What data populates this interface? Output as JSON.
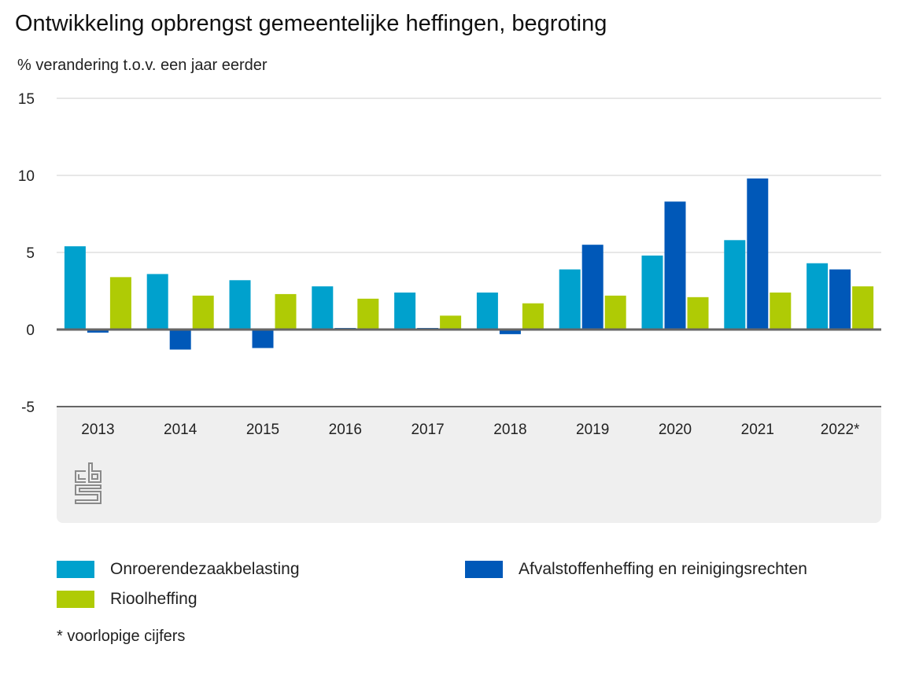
{
  "header": {
    "title": "Ontwikkeling opbrengst gemeentelijke heffingen, begroting",
    "subtitle": "% verandering t.o.v. een jaar eerder"
  },
  "logo": {
    "name": "cbs-logo",
    "text": "cbs"
  },
  "footnote": "* voorlopige cijfers",
  "chart_data": {
    "type": "bar",
    "title": "Ontwikkeling opbrengst gemeentelijke heffingen, begroting",
    "subtitle": "% verandering t.o.v. een jaar eerder",
    "xlabel": "",
    "ylabel": "% verandering t.o.v. een jaar eerder",
    "ylim": [
      -5,
      15
    ],
    "yticks": [
      -5,
      0,
      5,
      10,
      15
    ],
    "ytick_labels": [
      "-5",
      "0",
      "5",
      "10",
      "15"
    ],
    "grid": true,
    "legend_position": "bottom",
    "categories": [
      "2013",
      "2014",
      "2015",
      "2016",
      "2017",
      "2018",
      "2019",
      "2020",
      "2021",
      "2022*"
    ],
    "series": [
      {
        "name": "Onroerendezaakbelasting",
        "color": "#00a1cd",
        "values": [
          5.4,
          3.6,
          3.2,
          2.8,
          2.4,
          2.4,
          3.9,
          4.8,
          5.8,
          4.3
        ]
      },
      {
        "name": "Afvalstoffenheffing en reinigingsrechten",
        "color": "#0058b8",
        "values": [
          -0.2,
          -1.3,
          -1.2,
          0.1,
          0.1,
          -0.3,
          5.5,
          8.3,
          9.8,
          3.9
        ]
      },
      {
        "name": "Rioolheffing",
        "color": "#afcb05",
        "values": [
          3.4,
          2.2,
          2.3,
          2.0,
          0.9,
          1.7,
          2.2,
          2.1,
          2.4,
          2.8
        ]
      }
    ],
    "annotations": [
      "* voorlopige cijfers"
    ]
  }
}
